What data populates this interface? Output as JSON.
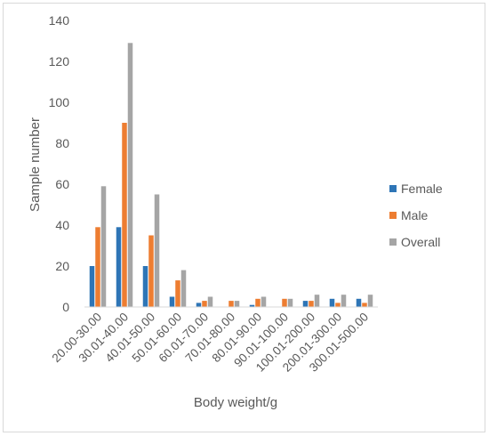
{
  "chart_data": {
    "type": "bar",
    "title": "",
    "xlabel": "Body weight/g",
    "ylabel": "Sample number",
    "ylim": [
      0,
      140
    ],
    "yticks": [
      0,
      20,
      40,
      60,
      80,
      100,
      120,
      140
    ],
    "grid": false,
    "legend_position": "right",
    "categories": [
      "20.00-30.00",
      "30.01-40.00",
      "40.01-50.00",
      "50.01-60.00",
      "60.01-70.00",
      "70.01-80.00",
      "80.01-90.00",
      "90.01-100.00",
      "100.01-200.00",
      "200.01-300.00",
      "300.01-500.00"
    ],
    "series": [
      {
        "name": "Female",
        "color": "#2e75b6",
        "values": [
          20,
          39,
          20,
          5,
          2,
          0,
          1,
          0,
          3,
          4,
          4
        ]
      },
      {
        "name": "Male",
        "color": "#ed7d31",
        "values": [
          39,
          90,
          35,
          13,
          3,
          3,
          4,
          4,
          3,
          2,
          2
        ]
      },
      {
        "name": "Overall",
        "color": "#a5a5a5",
        "values": [
          59,
          129,
          55,
          18,
          5,
          3,
          5,
          4,
          6,
          6,
          6
        ]
      }
    ]
  }
}
